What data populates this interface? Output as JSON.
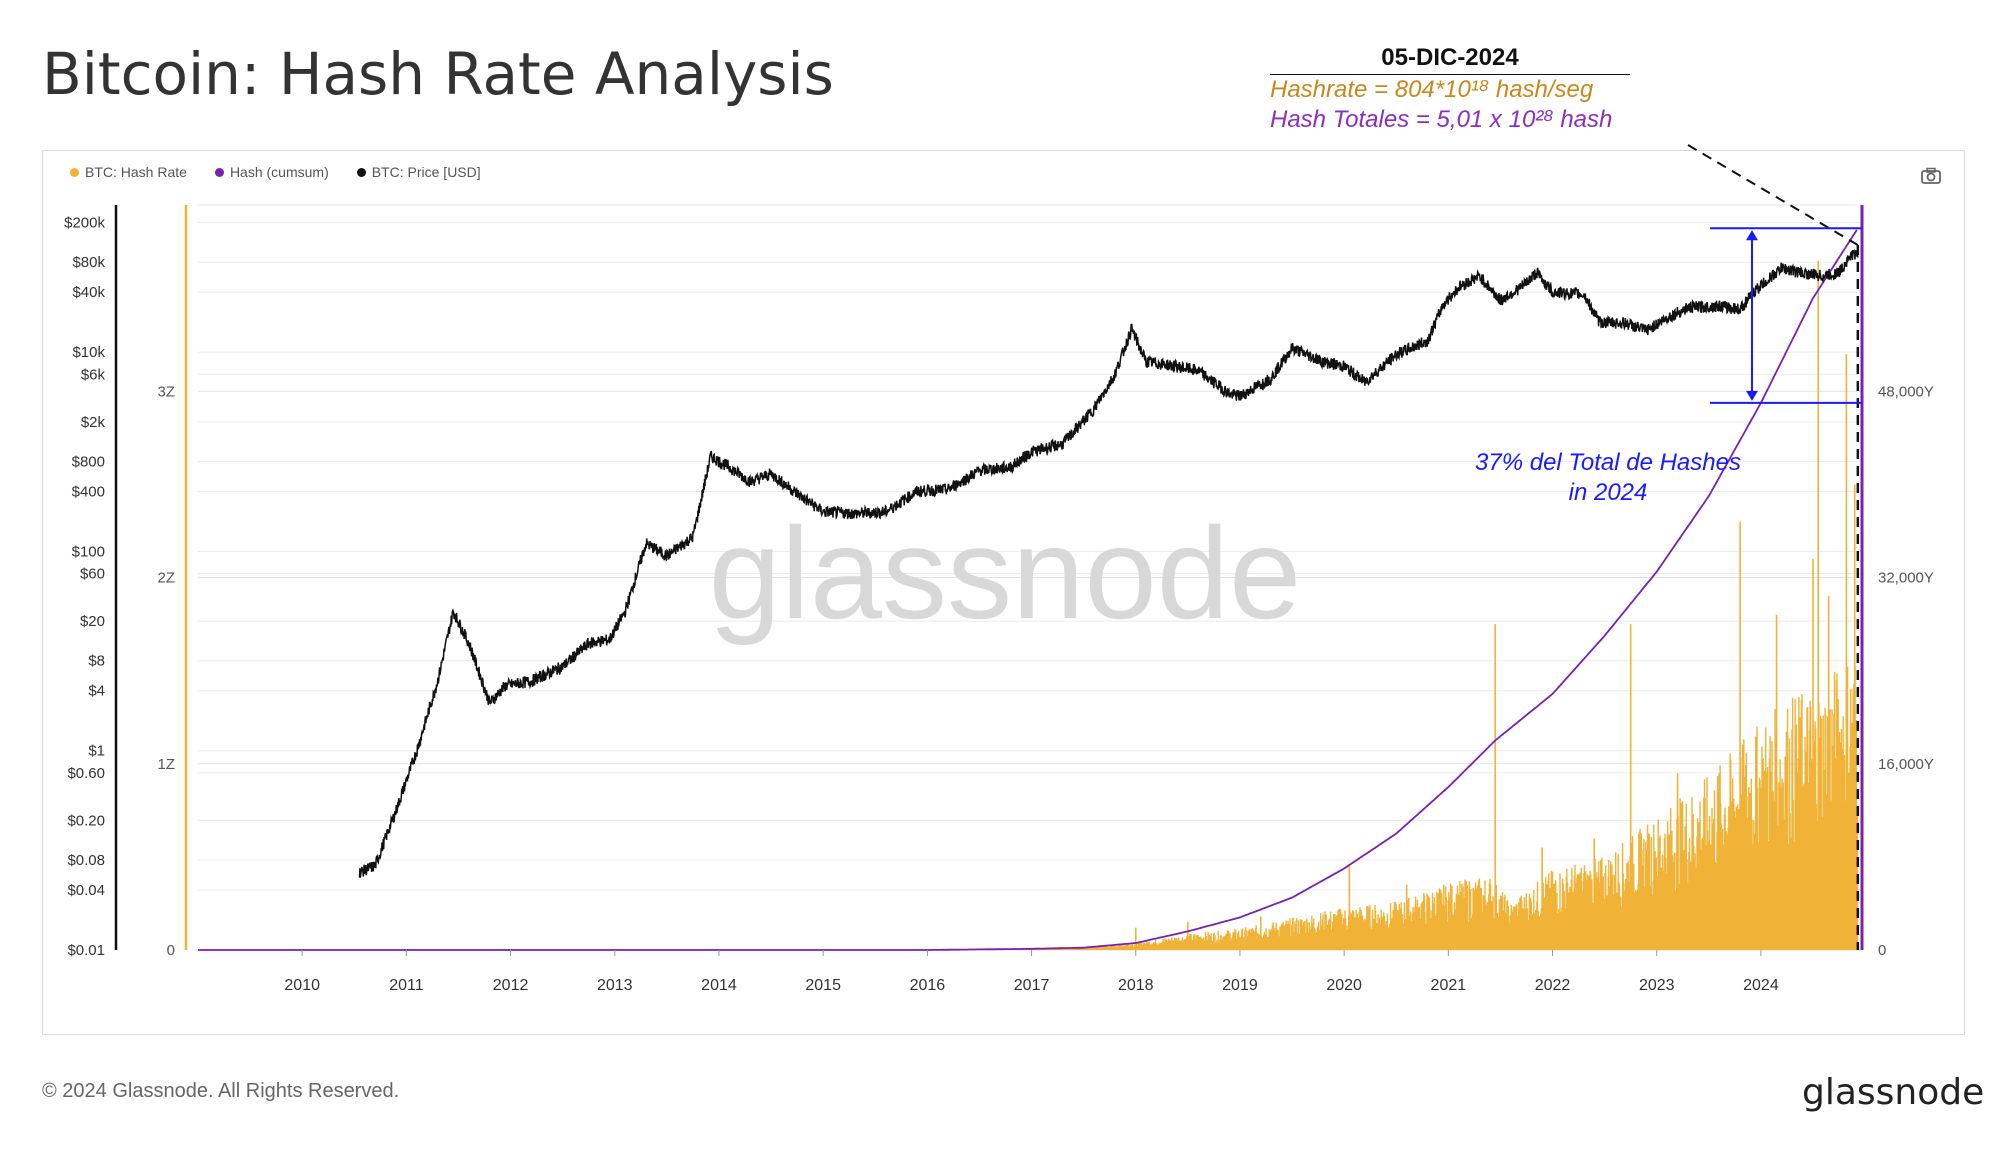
{
  "title": "Bitcoin: Hash Rate Analysis",
  "footer": "© 2024 Glassnode. All Rights Reserved.",
  "brand": "glassnode",
  "watermark": "glassnode",
  "annotation": {
    "date": "05-DIC-2024",
    "hashrate": "Hashrate = 804*10¹⁸ hash/seg",
    "total": "Hash Totales = 5,01 x 10²⁸ hash",
    "pct_line1": "37% del Total de Hashes",
    "pct_line2": "in 2024"
  },
  "legend": [
    {
      "label": "BTC: Hash Rate",
      "color": "#f0b237"
    },
    {
      "label": "Hash (cumsum)",
      "color": "#7a1fb4"
    },
    {
      "label": "BTC: Price [USD]",
      "color": "#111111"
    }
  ],
  "icons": {
    "camera": "camera-icon"
  },
  "chart_data": {
    "type": "line",
    "x_ticks": [
      "2010",
      "2011",
      "2012",
      "2013",
      "2014",
      "2015",
      "2016",
      "2017",
      "2018",
      "2019",
      "2020",
      "2021",
      "2022",
      "2023",
      "2024"
    ],
    "price_axis": {
      "scale": "log",
      "ticks": [
        "$200k",
        "$80k",
        "$40k",
        "$10k",
        "$6k",
        "$2k",
        "$800",
        "$400",
        "$100",
        "$60",
        "$20",
        "$8",
        "$4",
        "$1",
        "$0.60",
        "$0.20",
        "$0.08",
        "$0.04",
        "$0.01"
      ],
      "tick_values": [
        200000,
        80000,
        40000,
        10000,
        6000,
        2000,
        800,
        400,
        100,
        60,
        20,
        8,
        4,
        1,
        0.6,
        0.2,
        0.08,
        0.04,
        0.01
      ],
      "range": [
        0.01,
        300000
      ]
    },
    "hashrate_axis": {
      "ticks": [
        "0",
        "1Z",
        "2Z",
        "3Z"
      ],
      "tick_values": [
        0,
        1,
        2,
        3
      ],
      "range": [
        0,
        4
      ]
    },
    "cumsum_axis": {
      "ticks": [
        "0",
        "16,000Y",
        "32,000Y",
        "48,000Y"
      ],
      "tick_values": [
        0,
        16000,
        32000,
        48000
      ],
      "range": [
        0,
        64000
      ]
    },
    "series": [
      {
        "name": "BTC: Price [USD]",
        "color": "#111111",
        "axis": "price",
        "points": [
          [
            2010.55,
            0.06
          ],
          [
            2010.7,
            0.07
          ],
          [
            2010.9,
            0.25
          ],
          [
            2011.1,
            1.0
          ],
          [
            2011.3,
            5
          ],
          [
            2011.45,
            25
          ],
          [
            2011.6,
            12
          ],
          [
            2011.8,
            3
          ],
          [
            2011.95,
            4.5
          ],
          [
            2012.2,
            5
          ],
          [
            2012.5,
            7
          ],
          [
            2012.75,
            12
          ],
          [
            2012.95,
            13
          ],
          [
            2013.1,
            25
          ],
          [
            2013.3,
            120
          ],
          [
            2013.5,
            90
          ],
          [
            2013.75,
            140
          ],
          [
            2013.92,
            900
          ],
          [
            2014.1,
            700
          ],
          [
            2014.3,
            500
          ],
          [
            2014.5,
            600
          ],
          [
            2014.75,
            380
          ],
          [
            2015.0,
            250
          ],
          [
            2015.3,
            240
          ],
          [
            2015.6,
            250
          ],
          [
            2015.9,
            400
          ],
          [
            2016.2,
            420
          ],
          [
            2016.5,
            650
          ],
          [
            2016.8,
            700
          ],
          [
            2017.0,
            1000
          ],
          [
            2017.3,
            1200
          ],
          [
            2017.6,
            2700
          ],
          [
            2017.8,
            6000
          ],
          [
            2017.96,
            17000
          ],
          [
            2018.1,
            8000
          ],
          [
            2018.3,
            7500
          ],
          [
            2018.6,
            6500
          ],
          [
            2018.9,
            3800
          ],
          [
            2019.0,
            3600
          ],
          [
            2019.3,
            5500
          ],
          [
            2019.5,
            11000
          ],
          [
            2019.8,
            8000
          ],
          [
            2020.0,
            7200
          ],
          [
            2020.2,
            5000
          ],
          [
            2020.5,
            9500
          ],
          [
            2020.8,
            13000
          ],
          [
            2020.95,
            30000
          ],
          [
            2021.1,
            45000
          ],
          [
            2021.3,
            58000
          ],
          [
            2021.5,
            33000
          ],
          [
            2021.7,
            45000
          ],
          [
            2021.85,
            63000
          ],
          [
            2022.0,
            40000
          ],
          [
            2022.3,
            38000
          ],
          [
            2022.45,
            20000
          ],
          [
            2022.7,
            19500
          ],
          [
            2022.9,
            16500
          ],
          [
            2023.1,
            22000
          ],
          [
            2023.3,
            28000
          ],
          [
            2023.6,
            29000
          ],
          [
            2023.8,
            27000
          ],
          [
            2023.95,
            42000
          ],
          [
            2024.2,
            70000
          ],
          [
            2024.4,
            62000
          ],
          [
            2024.6,
            58000
          ],
          [
            2024.75,
            63000
          ],
          [
            2024.85,
            90000
          ],
          [
            2024.93,
            99000
          ]
        ]
      },
      {
        "name": "Hash (cumsum)",
        "color": "#7a1fb4",
        "axis": "cumsum",
        "points": [
          [
            2009.0,
            0
          ],
          [
            2016.0,
            0
          ],
          [
            2017.0,
            100
          ],
          [
            2017.5,
            200
          ],
          [
            2018.0,
            600
          ],
          [
            2018.5,
            1600
          ],
          [
            2019.0,
            2800
          ],
          [
            2019.5,
            4500
          ],
          [
            2020.0,
            7000
          ],
          [
            2020.5,
            10000
          ],
          [
            2021.0,
            14000
          ],
          [
            2021.45,
            18000
          ],
          [
            2022.0,
            22000
          ],
          [
            2022.5,
            27000
          ],
          [
            2023.0,
            32500
          ],
          [
            2023.5,
            39000
          ],
          [
            2024.0,
            47000
          ],
          [
            2024.5,
            56000
          ],
          [
            2024.93,
            62000
          ]
        ]
      },
      {
        "name": "BTC: Hash Rate",
        "color": "#f0b237",
        "axis": "hashrate",
        "points": [
          [
            2009.0,
            0
          ],
          [
            2016.0,
            0.002
          ],
          [
            2017.0,
            0.005
          ],
          [
            2017.5,
            0.01
          ],
          [
            2018.0,
            0.03
          ],
          [
            2018.5,
            0.06
          ],
          [
            2019.0,
            0.08
          ],
          [
            2019.5,
            0.12
          ],
          [
            2020.0,
            0.16
          ],
          [
            2020.5,
            0.18
          ],
          [
            2021.0,
            0.25
          ],
          [
            2021.4,
            0.28
          ],
          [
            2021.6,
            0.18
          ],
          [
            2022.0,
            0.3
          ],
          [
            2022.5,
            0.35
          ],
          [
            2023.0,
            0.5
          ],
          [
            2023.5,
            0.65
          ],
          [
            2024.0,
            0.85
          ],
          [
            2024.3,
            0.95
          ],
          [
            2024.6,
            1.0
          ],
          [
            2024.93,
            1.15
          ]
        ],
        "spikes": [
          [
            2018.0,
            0.12
          ],
          [
            2018.5,
            0.15
          ],
          [
            2019.2,
            0.18
          ],
          [
            2020.05,
            0.45
          ],
          [
            2020.6,
            0.35
          ],
          [
            2021.45,
            1.75
          ],
          [
            2021.9,
            0.55
          ],
          [
            2022.4,
            0.6
          ],
          [
            2022.75,
            1.75
          ],
          [
            2023.2,
            0.95
          ],
          [
            2023.6,
            0.95
          ],
          [
            2023.8,
            2.3
          ],
          [
            2024.15,
            1.8
          ],
          [
            2024.5,
            2.1
          ],
          [
            2024.55,
            3.7
          ],
          [
            2024.65,
            1.9
          ],
          [
            2024.82,
            3.2
          ],
          [
            2024.9,
            2.5
          ]
        ]
      }
    ]
  }
}
